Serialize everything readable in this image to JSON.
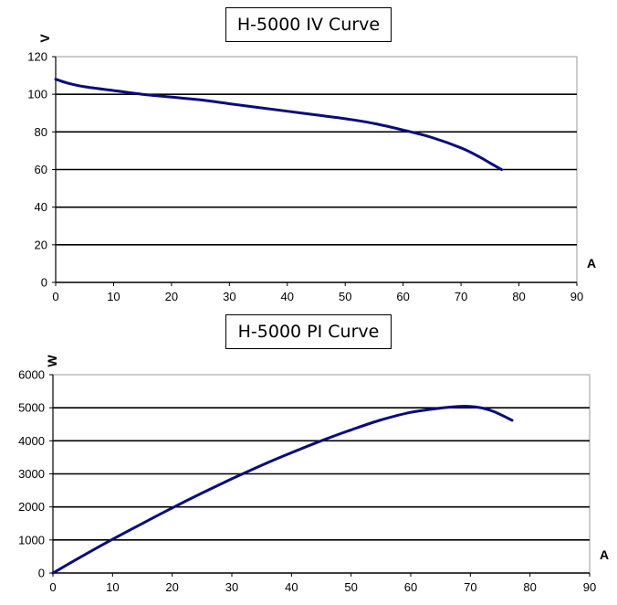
{
  "chart_data": [
    {
      "type": "line",
      "title": "H-5000 IV Curve",
      "xlabel": "A",
      "ylabel": "V",
      "xlim": [
        0,
        90
      ],
      "ylim": [
        0,
        120
      ],
      "xticks": [
        "0",
        "10",
        "20",
        "30",
        "40",
        "50",
        "60",
        "70",
        "80",
        "90"
      ],
      "yticks": [
        "0",
        "20",
        "40",
        "60",
        "80",
        "100",
        "120"
      ],
      "grid": "horizontal",
      "line_color": "#0b0b7a",
      "series": [
        {
          "x": [
            0,
            2,
            5,
            10,
            15,
            20,
            25,
            30,
            35,
            40,
            45,
            50,
            55,
            60,
            65,
            70,
            73,
            75,
            77
          ],
          "y": [
            108,
            106,
            104,
            102,
            100,
            98.5,
            97,
            95,
            93,
            91,
            89,
            87,
            84.5,
            81,
            77,
            71.5,
            67,
            63.5,
            60
          ]
        }
      ]
    },
    {
      "type": "line",
      "title": "H-5000 PI Curve",
      "xlabel": "A",
      "ylabel": "W",
      "xlim": [
        0,
        90
      ],
      "ylim": [
        0,
        6000
      ],
      "xticks": [
        "0",
        "10",
        "20",
        "30",
        "40",
        "50",
        "60",
        "70",
        "80",
        "90"
      ],
      "yticks": [
        "0",
        "1000",
        "2000",
        "3000",
        "4000",
        "5000",
        "6000"
      ],
      "grid": "horizontal",
      "line_color": "#0b0b7a",
      "series": [
        {
          "x": [
            0,
            5,
            10,
            15,
            20,
            25,
            30,
            35,
            40,
            45,
            50,
            55,
            60,
            65,
            68,
            70,
            72,
            74,
            77
          ],
          "y": [
            0,
            520,
            1020,
            1500,
            1970,
            2420,
            2850,
            3260,
            3640,
            4000,
            4330,
            4630,
            4860,
            4990,
            5040,
            5040,
            4990,
            4880,
            4620
          ]
        }
      ]
    }
  ]
}
